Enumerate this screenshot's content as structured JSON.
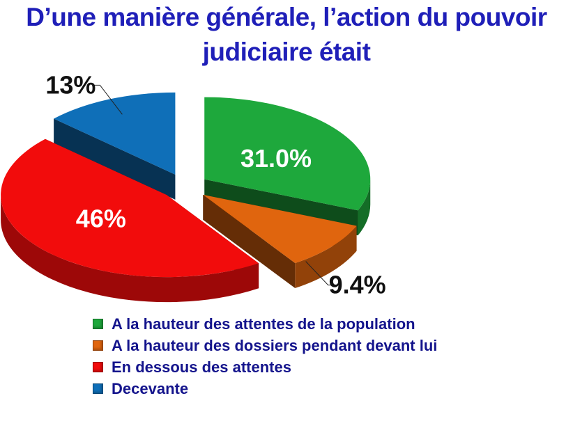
{
  "title": "D’une manière générale, l’action du pouvoir judiciaire était",
  "chart_data": {
    "type": "pie",
    "title": "D’une manière générale, l’action du pouvoir judiciaire était",
    "series": [
      {
        "name": "A la hauteur des attentes de la population",
        "value": 31.0,
        "label": "31.0%",
        "color": "#1ea83c"
      },
      {
        "name": "A la hauteur des dossiers pendant devant lui",
        "value": 9.4,
        "label": "9.4%",
        "color": "#e0650e"
      },
      {
        "name": "En dessous des attentes",
        "value": 46,
        "label": "46%",
        "color": "#f20c0c"
      },
      {
        "name": "Decevante",
        "value": 13,
        "label": "13%",
        "color": "#0f6fb8"
      }
    ],
    "legend": "bottom",
    "style": "3d-exploded"
  }
}
